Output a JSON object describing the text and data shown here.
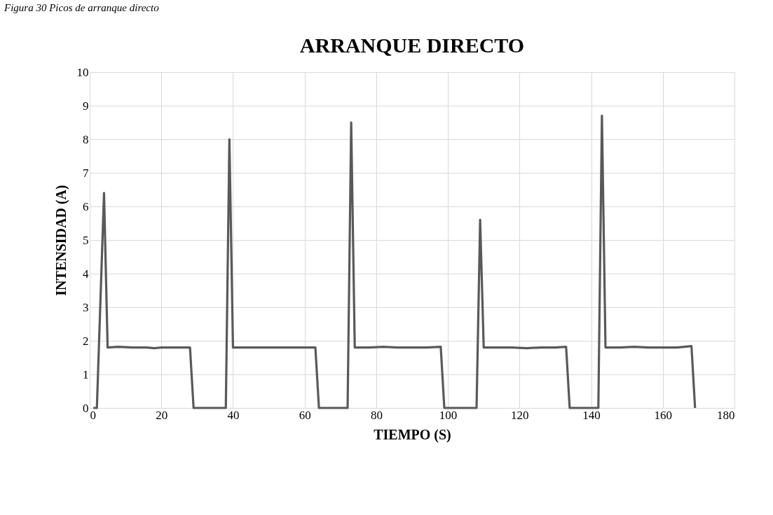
{
  "chart_data": {
    "type": "line",
    "title": "ARRANQUE DIRECTO",
    "xlabel": "TIEMPO (S)",
    "ylabel": "INTENSIDAD (A)",
    "annotations": [
      "Figura 30 Picos de arranque directo"
    ],
    "series": [
      {
        "color": "#595959",
        "x": [
          1,
          2,
          4,
          5,
          8,
          12,
          16,
          18,
          20,
          24,
          28,
          29,
          33,
          38,
          39,
          40,
          44,
          48,
          52,
          56,
          60,
          63,
          64,
          68,
          72,
          73,
          74,
          78,
          82,
          86,
          90,
          94,
          98,
          99,
          104,
          108,
          109,
          110,
          114,
          118,
          122,
          126,
          130,
          133,
          134,
          138,
          142,
          143,
          144,
          148,
          152,
          156,
          160,
          164,
          168,
          169
        ],
        "values": [
          0,
          0,
          6.4,
          1.8,
          1.82,
          1.8,
          1.8,
          1.78,
          1.8,
          1.8,
          1.8,
          0,
          0,
          0,
          8.0,
          1.8,
          1.8,
          1.8,
          1.8,
          1.8,
          1.8,
          1.8,
          0,
          0,
          0,
          8.5,
          1.8,
          1.8,
          1.82,
          1.8,
          1.8,
          1.8,
          1.82,
          0,
          0,
          0,
          5.6,
          1.8,
          1.8,
          1.8,
          1.78,
          1.8,
          1.8,
          1.82,
          0,
          0,
          0,
          8.7,
          1.8,
          1.8,
          1.82,
          1.8,
          1.8,
          1.8,
          1.84,
          0
        ]
      }
    ],
    "xlim": [
      0,
      180
    ],
    "xticks": [
      0,
      20,
      40,
      60,
      80,
      100,
      120,
      140,
      160,
      180
    ],
    "ylim": [
      0,
      10
    ],
    "yticks": [
      0,
      1,
      2,
      3,
      4,
      5,
      6,
      7,
      8,
      9,
      10
    ],
    "grid": true,
    "marker": "none",
    "line_style": "solid"
  }
}
